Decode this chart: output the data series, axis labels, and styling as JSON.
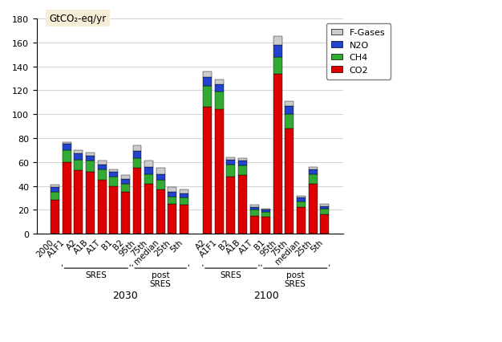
{
  "categories": [
    "2000",
    "A1F1",
    "A2",
    "A1B",
    "A1T",
    "B1",
    "B2",
    "95th",
    "75th",
    "median",
    "25th",
    "5th",
    "A2",
    "A1F1",
    "B2",
    "A1B",
    "A1T",
    "B1",
    "95th",
    "75th",
    "median",
    "25th",
    "5th"
  ],
  "co2": [
    28,
    60,
    53,
    52,
    45,
    40,
    35,
    55,
    42,
    37,
    25,
    24,
    106,
    104,
    48,
    49,
    15,
    14,
    134,
    88,
    22,
    42,
    16
  ],
  "ch4": [
    7,
    10,
    9,
    9,
    9,
    8,
    7,
    8,
    8,
    8,
    6,
    6,
    18,
    15,
    10,
    8,
    5,
    4,
    14,
    12,
    5,
    8,
    5
  ],
  "n2o": [
    4,
    5,
    5,
    4,
    4,
    4,
    4,
    6,
    6,
    5,
    4,
    4,
    7,
    6,
    4,
    4,
    2,
    2,
    10,
    7,
    3,
    4,
    2
  ],
  "fgas": [
    2,
    2,
    3,
    3,
    3,
    2,
    3,
    5,
    5,
    5,
    4,
    3,
    5,
    4,
    2,
    2,
    2,
    1,
    7,
    4,
    2,
    2,
    2
  ],
  "group1_label": "2030",
  "group2_label": "2100",
  "color_co2": "#dd0000",
  "color_ch4": "#33aa33",
  "color_n2o": "#2244cc",
  "color_fgas": "#cccccc",
  "ylabel": "GtCO₂-eq/yr",
  "ylim": [
    0,
    180
  ],
  "yticks": [
    0,
    20,
    40,
    60,
    80,
    100,
    120,
    140,
    160,
    180
  ],
  "background_color": "#ffffff",
  "ylabel_bg": "#f5edd6"
}
